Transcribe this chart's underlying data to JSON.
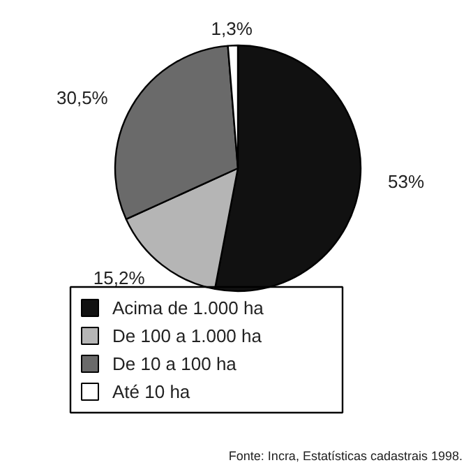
{
  "chart_data": {
    "type": "pie",
    "categories": [
      "Acima de 1.000 ha",
      "De 100 a 1.000 ha",
      "De 10 a 100 ha",
      "Até 10 ha"
    ],
    "values": [
      53,
      15.2,
      30.5,
      1.3
    ],
    "colors": [
      "#111111",
      "#b5b5b5",
      "#6a6a6a",
      "#ffffff"
    ],
    "value_labels": [
      "53%",
      "15,2%",
      "30,5%",
      "1,3%"
    ],
    "legend": "bottom",
    "annotations": [
      "Fonte: Incra, Estatísticas cadastrais 1998."
    ]
  }
}
